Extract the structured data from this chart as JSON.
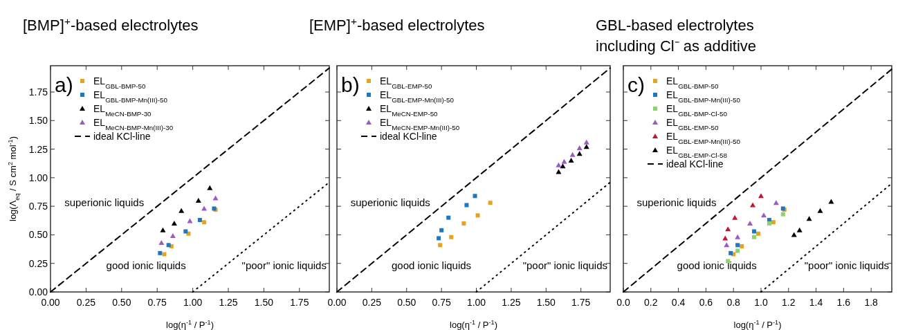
{
  "chart_data": [
    {
      "type": "scatter",
      "title": "[BMP]$^{+}$-based electrolytes",
      "xlabel": "log(η$^{-1}$ / P$^{-1}$)",
      "ylabel": "log(Λ$_{eq}$ / S cm$^{2}$ mol$^{-1}$)",
      "annotations": [
        "a)",
        "superionic liquids",
        "good ionic liquids",
        "\"poor\" ionic liquids"
      ],
      "xlim": [
        0,
        1.96
      ],
      "ylim": [
        0,
        1.98
      ],
      "xticks": [
        {
          "value": 0,
          "label": "0.00"
        },
        {
          "value": 0.25,
          "label": "0.25"
        },
        {
          "value": 0.5,
          "label": "0.50"
        },
        {
          "value": 0.75,
          "label": "0.75"
        },
        {
          "value": 1,
          "label": "1.00"
        },
        {
          "value": 1.25,
          "label": "1.25"
        },
        {
          "value": 1.5,
          "label": "1.50"
        },
        {
          "value": 1.75,
          "label": "1.75"
        }
      ],
      "yticks": [
        {
          "value": 0,
          "label": "0.00"
        },
        {
          "value": 0.25,
          "label": "0.25"
        },
        {
          "value": 0.5,
          "label": "0.50"
        },
        {
          "value": 0.75,
          "label": "0.75"
        },
        {
          "value": 1,
          "label": "1.00"
        },
        {
          "value": 1.25,
          "label": "1.25"
        },
        {
          "value": 1.5,
          "label": "1.50"
        },
        {
          "value": 1.75,
          "label": "1.75"
        }
      ],
      "legend": "top left",
      "grid": false,
      "series": [
        {
          "name": "EL$_{GBL-BMP-50}$",
          "color": "#e8a21c",
          "marker": "square",
          "x": [
            0.8,
            0.85,
            0.97,
            1.08,
            1.16
          ],
          "values": [
            0.33,
            0.4,
            0.51,
            0.61,
            0.72
          ]
        },
        {
          "name": "EL$_{GBL-BMP-Mn(III)-50}$",
          "color": "#1f77c4",
          "marker": "square",
          "x": [
            0.77,
            0.83,
            0.95,
            1.05,
            1.15
          ],
          "values": [
            0.34,
            0.41,
            0.53,
            0.63,
            0.73
          ]
        },
        {
          "name": "EL$_{MeCN-BMP-30}$",
          "color": "#000000",
          "marker": "triangle",
          "x": [
            0.79,
            0.87,
            0.92,
            1.04,
            1.12
          ],
          "values": [
            0.54,
            0.6,
            0.71,
            0.8,
            0.91
          ]
        },
        {
          "name": "EL$_{MeCN-BMP-Mn(III)-30}$",
          "color": "#9b59c8",
          "marker": "triangle",
          "x": [
            0.78,
            0.86,
            0.98,
            1.08,
            1.16
          ],
          "values": [
            0.43,
            0.49,
            0.62,
            0.73,
            0.82
          ]
        },
        {
          "type": "line",
          "name": "ideal KCl-line",
          "color": "#000000",
          "line_style": "dashed",
          "x": [
            0,
            1.96
          ],
          "values": [
            0,
            1.96
          ]
        },
        {
          "type": "line",
          "color": "#000000",
          "line_style": "dotted",
          "x": [
            1,
            1.96
          ],
          "values": [
            0,
            0.96
          ]
        }
      ]
    },
    {
      "type": "scatter",
      "title": "[EMP]$^{+}$-based electrolytes",
      "xlabel": "log(η$^{-1}$ / P$^{-1}$)",
      "annotations": [
        "b)",
        "superionic liquids",
        "good ionic liquids",
        "\"poor\" ionic liquids"
      ],
      "xlim": [
        0,
        1.96
      ],
      "ylim": [
        0,
        1.98
      ],
      "tick_labels": "x",
      "xticks": [
        {
          "value": 0,
          "label": "0.00"
        },
        {
          "value": 0.25,
          "label": "0.25"
        },
        {
          "value": 0.5,
          "label": "0.50"
        },
        {
          "value": 0.75,
          "label": "0.75"
        },
        {
          "value": 1,
          "label": "1.00"
        },
        {
          "value": 1.25,
          "label": "1.25"
        },
        {
          "value": 1.5,
          "label": "1.50"
        },
        {
          "value": 1.75,
          "label": "1.75"
        }
      ],
      "yticks": [
        0,
        0.25,
        0.5,
        0.75,
        1,
        1.25,
        1.5,
        1.75
      ],
      "legend": "top left",
      "grid": false,
      "series": [
        {
          "name": "EL$_{GBL-EMP-50}$",
          "color": "#e8a21c",
          "marker": "square",
          "x": [
            0.74,
            0.82,
            0.91,
            1.01,
            1.1
          ],
          "values": [
            0.41,
            0.48,
            0.6,
            0.67,
            0.78
          ]
        },
        {
          "name": "EL$_{GBL-EMP-Mn(III)-50}$",
          "color": "#1f77c4",
          "marker": "square",
          "x": [
            0.73,
            0.75,
            0.8,
            0.93,
            0.99
          ],
          "values": [
            0.47,
            0.54,
            0.65,
            0.76,
            0.84
          ]
        },
        {
          "name": "EL$_{MeCN-EMP-50}$",
          "color": "#000000",
          "marker": "triangle",
          "x": [
            1.59,
            1.62,
            1.68,
            1.74,
            1.79
          ],
          "values": [
            1.05,
            1.1,
            1.15,
            1.21,
            1.27
          ]
        },
        {
          "name": "EL$_{MeCN-EMP-Mn(III)-50}$",
          "color": "#9b59c8",
          "marker": "triangle",
          "x": [
            1.59,
            1.63,
            1.69,
            1.74,
            1.79
          ],
          "values": [
            1.11,
            1.14,
            1.2,
            1.26,
            1.31
          ]
        },
        {
          "type": "line",
          "name": "ideal KCl-line",
          "color": "#000000",
          "line_style": "dashed",
          "x": [
            0,
            1.96
          ],
          "values": [
            0,
            1.96
          ]
        },
        {
          "type": "line",
          "color": "#000000",
          "line_style": "dotted",
          "x": [
            1,
            1.96
          ],
          "values": [
            0,
            0.96
          ]
        }
      ]
    },
    {
      "type": "scatter",
      "title": "GBL-based electrolytes including Cl⁻ as additive",
      "xlabel": "log(η$^{-1}$ / P$^{-1}$)",
      "annotations": [
        "c)",
        "superionic liquids",
        "good ionic liquids",
        "\"poor\" ionic liquids"
      ],
      "xlim": [
        0,
        1.95
      ],
      "ylim": [
        0,
        1.98
      ],
      "tick_labels": "x",
      "xticks": [
        {
          "value": 0,
          "label": "0.0"
        },
        0.2,
        0.4,
        0.6,
        0.8,
        {
          "value": 1,
          "label": "1.0"
        },
        1.2,
        1.4,
        1.6,
        1.8
      ],
      "yticks": [
        0,
        0.25,
        0.5,
        0.75,
        1,
        1.25,
        1.5,
        1.75
      ],
      "legend": "top left",
      "grid": false,
      "series": [
        {
          "name": "EL$_{GBL-BMP-50}$",
          "color": "#e8a21c",
          "marker": "square",
          "x": [
            0.8,
            0.86,
            0.98,
            1.09,
            1.17
          ],
          "values": [
            0.33,
            0.4,
            0.51,
            0.61,
            0.72
          ]
        },
        {
          "name": "EL$_{GBL-BMP-Mn(III)-50}$",
          "color": "#1f77c4",
          "marker": "square",
          "x": [
            0.78,
            0.83,
            0.95,
            1.06,
            1.16
          ],
          "values": [
            0.34,
            0.41,
            0.53,
            0.63,
            0.73
          ]
        },
        {
          "name": "EL$_{GBL-BMP-Cl-50}$",
          "color": "#8fd16a",
          "marker": "square",
          "x": [
            0.76,
            0.83,
            0.95,
            1.06,
            1.16
          ],
          "values": [
            0.27,
            0.36,
            0.48,
            0.6,
            0.68
          ]
        },
        {
          "name": "EL$_{GBL-EMP-50}$",
          "color": "#9b59c8",
          "marker": "triangle",
          "x": [
            0.75,
            0.83,
            0.92,
            1.02,
            1.11
          ],
          "values": [
            0.41,
            0.48,
            0.6,
            0.67,
            0.78
          ]
        },
        {
          "name": "EL$_{GBL-EMP-Mn(III)-50}$",
          "color": "#c0182a",
          "marker": "triangle",
          "x": [
            0.74,
            0.76,
            0.81,
            0.94,
            1.0
          ],
          "values": [
            0.47,
            0.55,
            0.65,
            0.76,
            0.84
          ]
        },
        {
          "name": "EL$_{GBL-EMP-Cl-58}$",
          "color": "#000000",
          "marker": "triangle",
          "x": [
            1.24,
            1.28,
            1.35,
            1.43,
            1.51
          ],
          "values": [
            0.5,
            0.54,
            0.64,
            0.71,
            0.79
          ]
        },
        {
          "type": "line",
          "name": "ideal KCl-line",
          "color": "#000000",
          "line_style": "dashed",
          "x": [
            0,
            1.95
          ],
          "values": [
            0,
            1.95
          ]
        },
        {
          "type": "line",
          "color": "#000000",
          "line_style": "dotted",
          "x": [
            1,
            1.95
          ],
          "values": [
            0,
            0.95
          ]
        }
      ]
    }
  ]
}
